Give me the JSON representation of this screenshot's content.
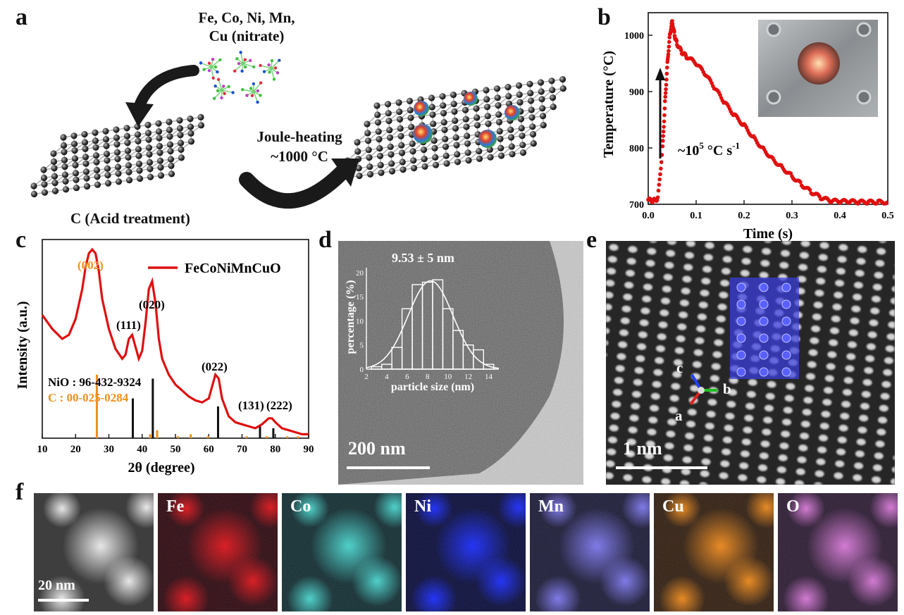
{
  "panels": {
    "a": {
      "label": "a",
      "precursor_line1": "Fe, Co, Ni, Mn,",
      "precursor_line2": "Cu (nitrate)",
      "process_line1": "Joule-heating",
      "process_line2": "~1000 °C",
      "substrate_label": "C (Acid treatment)"
    },
    "b": {
      "label": "b",
      "rate_text_prefix": "~10",
      "rate_exp": "5",
      "rate_text_mid": " °C s",
      "rate_exp2": "-1"
    },
    "c": {
      "label": "c",
      "legend": "FeCoNiMnCuO",
      "ref_nio": "NiO : 96-432-9324",
      "ref_c": "C : 00-025-0284",
      "peaks": [
        "(002)",
        "(111)",
        "(020)",
        "(022)",
        "(131)",
        "(222)"
      ]
    },
    "d": {
      "label": "d",
      "scale": "200 nm",
      "inset_value": "9.53 ± 5 nm"
    },
    "e": {
      "label": "e",
      "scale": "1 nm",
      "axis_a": "a",
      "axis_b": "b",
      "axis_c": "c"
    },
    "f": {
      "label": "f",
      "scale": "20 nm",
      "maps": [
        {
          "element": "",
          "color": "#9a9a9a"
        },
        {
          "element": "Fe",
          "color": "#e0141a"
        },
        {
          "element": "Co",
          "color": "#49d6cf"
        },
        {
          "element": "Ni",
          "color": "#1a2cff"
        },
        {
          "element": "Mn",
          "color": "#7d78f0"
        },
        {
          "element": "Cu",
          "color": "#f08a1a"
        },
        {
          "element": "O",
          "color": "#d878d8"
        }
      ]
    }
  },
  "chart_data": [
    {
      "type": "scatter",
      "panel": "b",
      "xlabel": "Time (s)",
      "ylabel": "Temperature (°C)",
      "xlim": [
        0,
        0.5
      ],
      "ylim": [
        700,
        1040
      ],
      "xticks": [
        0.0,
        0.1,
        0.2,
        0.3,
        0.4,
        0.5
      ],
      "yticks": [
        700,
        800,
        900,
        1000
      ],
      "color": "#e01010",
      "x": [
        0.0,
        0.01,
        0.02,
        0.03,
        0.035,
        0.04,
        0.045,
        0.05,
        0.055,
        0.06,
        0.07,
        0.08,
        0.1,
        0.12,
        0.14,
        0.16,
        0.18,
        0.2,
        0.22,
        0.24,
        0.26,
        0.28,
        0.3,
        0.32,
        0.34,
        0.36,
        0.38,
        0.4,
        0.42,
        0.44,
        0.46,
        0.48,
        0.5
      ],
      "y": [
        708,
        706,
        710,
        800,
        880,
        950,
        1000,
        1025,
        1000,
        985,
        970,
        962,
        950,
        930,
        905,
        880,
        858,
        840,
        818,
        798,
        780,
        765,
        750,
        735,
        722,
        712,
        706,
        705,
        705,
        704,
        704,
        704,
        704
      ]
    },
    {
      "type": "line",
      "panel": "c",
      "xlabel": "2θ (degree)",
      "ylabel": "Intensity (a.u.)",
      "xlim": [
        10,
        90
      ],
      "xticks": [
        10,
        20,
        30,
        40,
        50,
        60,
        70,
        80,
        90
      ],
      "series": [
        {
          "name": "FeCoNiMnCuO",
          "color": "#e01010",
          "x": [
            10,
            13,
            16,
            18,
            20,
            22,
            23,
            24,
            25,
            26,
            27,
            28,
            30,
            32,
            34,
            35,
            36,
            37,
            38,
            39,
            40,
            41,
            42,
            43,
            44,
            45,
            46,
            48,
            50,
            52,
            54,
            56,
            58,
            60,
            61,
            62,
            63,
            64,
            66,
            68,
            70,
            72,
            74,
            76,
            78,
            79,
            80,
            82,
            84,
            86,
            88,
            90
          ],
          "y": [
            0.62,
            0.55,
            0.5,
            0.52,
            0.6,
            0.75,
            0.86,
            0.93,
            0.95,
            0.93,
            0.84,
            0.7,
            0.55,
            0.45,
            0.4,
            0.42,
            0.5,
            0.52,
            0.46,
            0.4,
            0.44,
            0.58,
            0.75,
            0.79,
            0.68,
            0.5,
            0.4,
            0.32,
            0.27,
            0.24,
            0.21,
            0.19,
            0.18,
            0.2,
            0.26,
            0.32,
            0.3,
            0.2,
            0.11,
            0.08,
            0.07,
            0.06,
            0.05,
            0.07,
            0.1,
            0.1,
            0.08,
            0.05,
            0.04,
            0.03,
            0.02,
            0.02
          ]
        }
      ],
      "reference_nio": {
        "color": "#111111",
        "x": [
          37.2,
          43.2,
          62.8,
          75.4,
          79.4
        ],
        "h": [
          0.2,
          0.3,
          0.16,
          0.06,
          0.05
        ]
      },
      "reference_c": {
        "color": "#f0901a",
        "x": [
          26.4,
          42.4,
          44.5,
          50.7,
          54.6,
          59.8,
          71.4,
          77.4,
          83.6,
          86.8
        ],
        "h": [
          0.32,
          0.02,
          0.04,
          0.01,
          0.02,
          0.01,
          0.01,
          0.01,
          0.01,
          0.01
        ]
      }
    },
    {
      "type": "bar",
      "panel": "d-inset",
      "xlabel": "particle size (nm)",
      "ylabel": "percentage (%)",
      "xlim": [
        2,
        15
      ],
      "ylim": [
        0,
        21
      ],
      "xticks": [
        2,
        4,
        6,
        8,
        10,
        12,
        14
      ],
      "yticks": [
        0,
        5,
        10,
        15,
        20
      ],
      "x": [
        3,
        4,
        5,
        6,
        7,
        8,
        9,
        10,
        11,
        12,
        13,
        14
      ],
      "values": [
        0.5,
        1,
        4.5,
        12.5,
        17.5,
        18,
        18.5,
        12.5,
        8,
        5,
        4,
        1
      ]
    }
  ]
}
